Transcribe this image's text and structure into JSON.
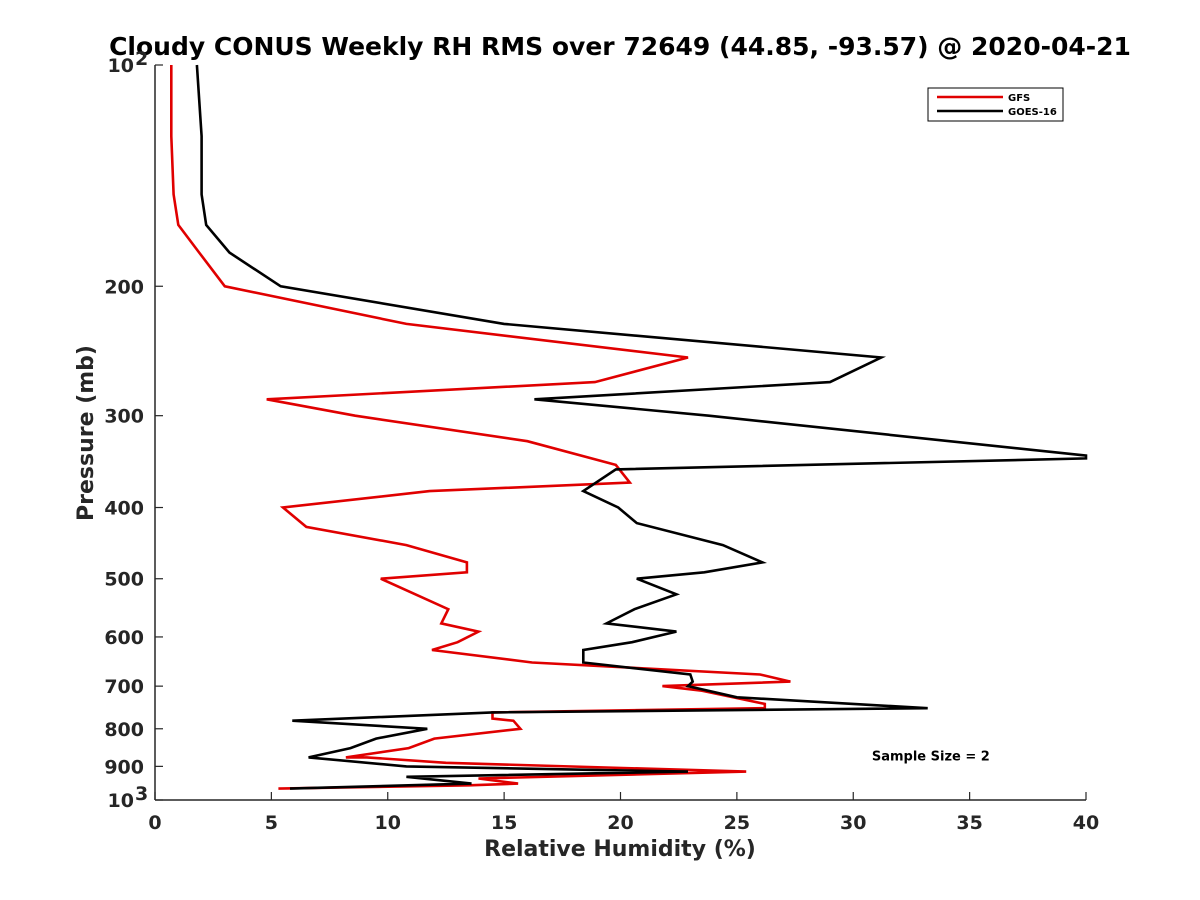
{
  "chart_data": {
    "type": "line",
    "title": "Cloudy CONUS Weekly RH RMS over 72649 (44.85, -93.57) @ 2020-04-21",
    "xlabel": "Relative Humidity (%)",
    "ylabel": "Pressure (mb)",
    "xlim": [
      0,
      40
    ],
    "ylim": [
      100,
      1000
    ],
    "y_scale": "log",
    "y_reversed": true,
    "grid": false,
    "legend_position": "top-right",
    "x_ticks": [
      0,
      5,
      10,
      15,
      20,
      25,
      30,
      35,
      40
    ],
    "y_ticks": [
      {
        "value": 100,
        "label": "10",
        "sup": "2"
      },
      {
        "value": 200,
        "label": "200",
        "sup": ""
      },
      {
        "value": 300,
        "label": "300",
        "sup": ""
      },
      {
        "value": 400,
        "label": "400",
        "sup": ""
      },
      {
        "value": 500,
        "label": "500",
        "sup": ""
      },
      {
        "value": 600,
        "label": "600",
        "sup": ""
      },
      {
        "value": 700,
        "label": "700",
        "sup": ""
      },
      {
        "value": 800,
        "label": "800",
        "sup": ""
      },
      {
        "value": 900,
        "label": "900",
        "sup": ""
      },
      {
        "value": 1000,
        "label": "10",
        "sup": "3"
      }
    ],
    "series": [
      {
        "name": "GFS",
        "color": "#e00000",
        "points": [
          [
            0.7,
            100
          ],
          [
            0.7,
            125
          ],
          [
            0.8,
            150
          ],
          [
            1.0,
            165
          ],
          [
            1.9,
            180
          ],
          [
            3.0,
            200
          ],
          [
            10.8,
            225
          ],
          [
            22.9,
            250
          ],
          [
            18.9,
            270
          ],
          [
            4.8,
            285
          ],
          [
            8.6,
            300
          ],
          [
            16.0,
            325
          ],
          [
            19.8,
            350
          ],
          [
            20.4,
            370
          ],
          [
            11.8,
            380
          ],
          [
            5.5,
            400
          ],
          [
            6.5,
            425
          ],
          [
            10.8,
            450
          ],
          [
            13.4,
            475
          ],
          [
            13.4,
            490
          ],
          [
            9.7,
            500
          ],
          [
            12.6,
            550
          ],
          [
            12.3,
            575
          ],
          [
            13.9,
            590
          ],
          [
            13.0,
            610
          ],
          [
            11.9,
            625
          ],
          [
            16.2,
            650
          ],
          [
            26.0,
            675
          ],
          [
            27.3,
            690
          ],
          [
            21.8,
            700
          ],
          [
            23.5,
            710
          ],
          [
            26.2,
            740
          ],
          [
            26.2,
            750
          ],
          [
            14.5,
            760
          ],
          [
            14.5,
            775
          ],
          [
            15.4,
            780
          ],
          [
            15.7,
            800
          ],
          [
            12.0,
            825
          ],
          [
            10.9,
            850
          ],
          [
            8.2,
            875
          ],
          [
            9.1,
            875
          ],
          [
            12.5,
            890
          ],
          [
            25.4,
            915
          ],
          [
            13.9,
            935
          ],
          [
            15.6,
            950
          ],
          [
            13.5,
            955
          ],
          [
            5.3,
            965
          ]
        ]
      },
      {
        "name": "GOES-16",
        "color": "#000000",
        "points": [
          [
            1.8,
            100
          ],
          [
            2.0,
            125
          ],
          [
            2.0,
            150
          ],
          [
            2.2,
            165
          ],
          [
            3.2,
            180
          ],
          [
            5.4,
            200
          ],
          [
            15.0,
            225
          ],
          [
            31.2,
            250
          ],
          [
            29.0,
            270
          ],
          [
            16.3,
            285
          ],
          [
            23.8,
            300
          ],
          [
            40.0,
            340
          ],
          [
            40.0,
            343
          ],
          [
            19.8,
            355
          ],
          [
            18.4,
            380
          ],
          [
            19.9,
            400
          ],
          [
            20.7,
            420
          ],
          [
            24.4,
            450
          ],
          [
            26.1,
            475
          ],
          [
            23.6,
            490
          ],
          [
            20.7,
            500
          ],
          [
            22.4,
            525
          ],
          [
            20.6,
            550
          ],
          [
            19.4,
            575
          ],
          [
            22.4,
            590
          ],
          [
            20.5,
            610
          ],
          [
            18.4,
            625
          ],
          [
            18.4,
            650
          ],
          [
            23.0,
            675
          ],
          [
            23.1,
            690
          ],
          [
            22.9,
            700
          ],
          [
            25.0,
            725
          ],
          [
            33.2,
            750
          ],
          [
            14.5,
            760
          ],
          [
            5.9,
            780
          ],
          [
            11.7,
            800
          ],
          [
            9.5,
            825
          ],
          [
            8.4,
            850
          ],
          [
            6.6,
            875
          ],
          [
            10.8,
            900
          ],
          [
            22.9,
            915
          ],
          [
            10.8,
            930
          ],
          [
            13.6,
            950
          ],
          [
            5.8,
            965
          ]
        ]
      }
    ],
    "annotations": [
      {
        "text": "Sample Size = 2",
        "x": 30.8,
        "y": 870
      }
    ]
  }
}
